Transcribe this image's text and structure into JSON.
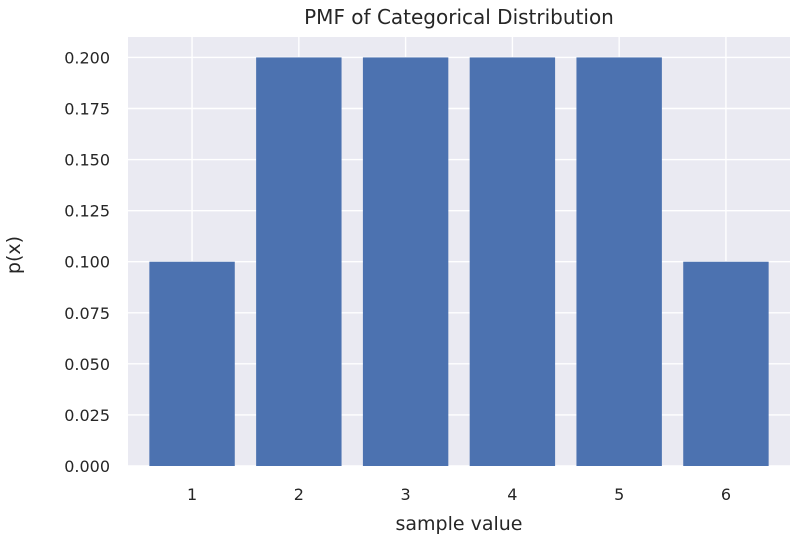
{
  "chart_data": {
    "type": "bar",
    "title": "PMF of Categorical Distribution",
    "xlabel": "sample value",
    "ylabel": "p(x)",
    "categories": [
      "1",
      "2",
      "3",
      "4",
      "5",
      "6"
    ],
    "values": [
      0.1,
      0.2,
      0.2,
      0.2,
      0.2,
      0.1
    ],
    "ylim": [
      0,
      0.21
    ],
    "yticks": [
      "0.000",
      "0.025",
      "0.050",
      "0.075",
      "0.100",
      "0.125",
      "0.150",
      "0.175",
      "0.200"
    ],
    "grid": true,
    "colors": {
      "bar": "#4c72b0",
      "background": "#eaeaf2",
      "grid": "#ffffff"
    }
  }
}
